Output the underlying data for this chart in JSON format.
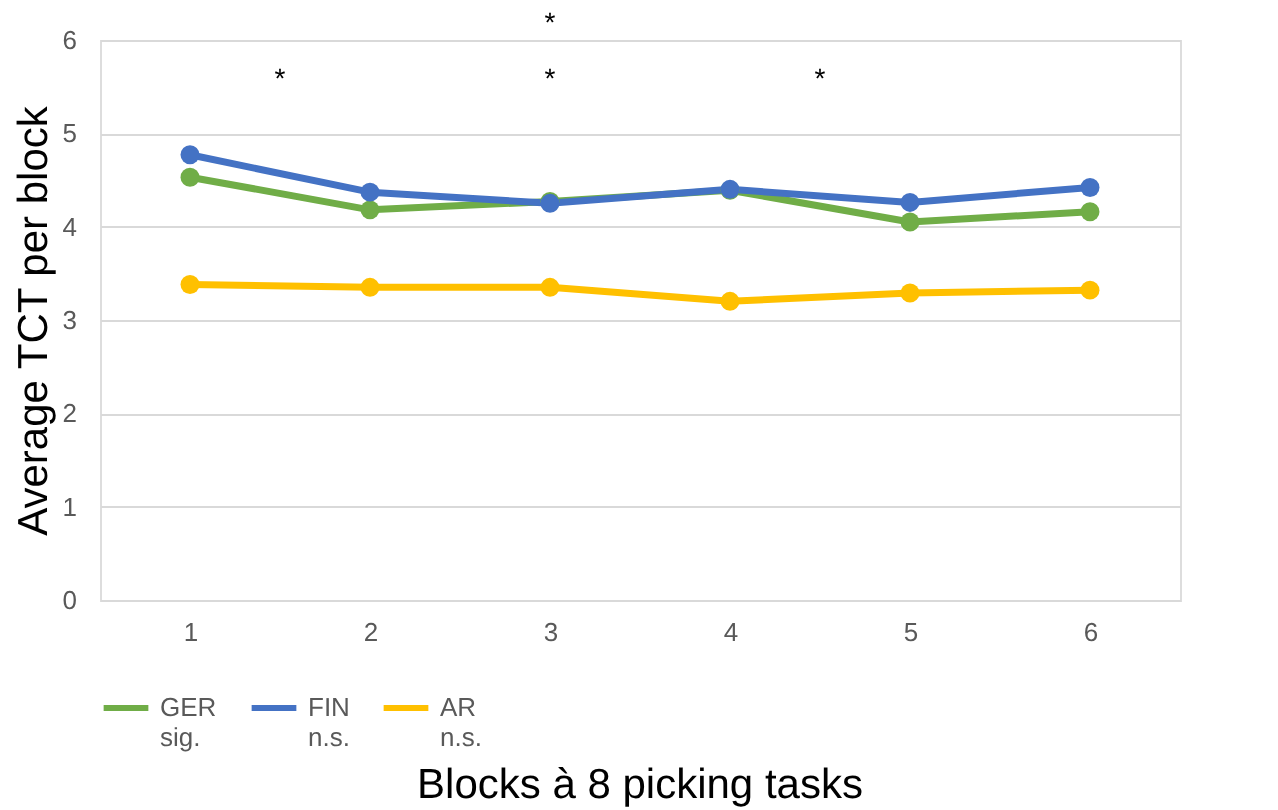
{
  "chart_data": {
    "type": "line",
    "xlabel": "Blocks à 8 picking tasks",
    "ylabel": "Average TCT per block",
    "x": [
      1,
      2,
      3,
      4,
      5,
      6
    ],
    "xlim": [
      0.5,
      6.5
    ],
    "xticks": [
      1,
      2,
      3,
      4,
      5,
      6
    ],
    "ylim": [
      0,
      6
    ],
    "yticks": [
      0,
      1,
      2,
      3,
      4,
      5,
      6
    ],
    "grid": "y",
    "legend": "bottom",
    "marker": "circle",
    "line_style": "solid",
    "series": [
      {
        "name": "GER",
        "color": "#70ad47",
        "values": [
          4.53,
          4.18,
          4.27,
          4.39,
          4.05,
          4.16
        ]
      },
      {
        "name": "FIN",
        "color": "#4472c4",
        "values": [
          4.77,
          4.37,
          4.25,
          4.4,
          4.26,
          4.42
        ]
      },
      {
        "name": "AR",
        "color": "#ffc000",
        "values": [
          3.38,
          3.35,
          3.35,
          3.2,
          3.29,
          3.32
        ]
      }
    ],
    "annotations": [
      "*",
      "*",
      "*",
      "*",
      "sig.",
      "n.s.",
      "n.s."
    ]
  }
}
